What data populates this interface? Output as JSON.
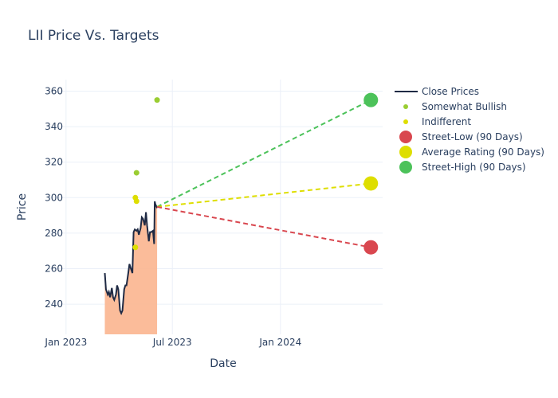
{
  "chart_data": {
    "type": "line",
    "title": "LII Price Vs. Targets",
    "xlabel": "Date",
    "ylabel": "Price",
    "xlim": [
      "2022-12-01",
      "2024-06-23"
    ],
    "ylim": [
      223,
      366.5
    ],
    "grid": true,
    "legend_position": "right",
    "x_ticks": [
      {
        "date": "2023-01-01",
        "label": "Jan 2023"
      },
      {
        "date": "2023-07-01",
        "label": "Jul 2023"
      },
      {
        "date": "2024-01-01",
        "label": "Jan 2024"
      }
    ],
    "y_ticks": [
      240,
      260,
      280,
      300,
      320,
      340,
      360
    ],
    "colors": {
      "close": "#1f2a44",
      "fill": "#fbb58f",
      "somewhat_bullish": "#9acd32",
      "indifferent": "#dede00",
      "street_low": "#d9474f",
      "average": "#dede00",
      "street_high": "#4cc25a"
    },
    "legend": [
      {
        "key": "close",
        "label": "Close Prices",
        "kind": "line"
      },
      {
        "key": "somewhat_bullish",
        "label": "Somewhat Bullish",
        "kind": "small"
      },
      {
        "key": "indifferent",
        "label": "Indifferent",
        "kind": "small"
      },
      {
        "key": "street_low",
        "label": "Street-Low (90 Days)",
        "kind": "big"
      },
      {
        "key": "average",
        "label": "Average Rating (90 Days)",
        "kind": "big"
      },
      {
        "key": "street_high",
        "label": "Street-High (90 Days)",
        "kind": "big"
      }
    ],
    "close_prices": {
      "dates": [
        "2023-03-08",
        "2023-03-10",
        "2023-03-13",
        "2023-03-15",
        "2023-03-17",
        "2023-03-20",
        "2023-03-22",
        "2023-03-24",
        "2023-03-27",
        "2023-03-29",
        "2023-03-31",
        "2023-04-03",
        "2023-04-05",
        "2023-04-07",
        "2023-04-10",
        "2023-04-12",
        "2023-04-14",
        "2023-04-17",
        "2023-04-19",
        "2023-04-21",
        "2023-04-24",
        "2023-04-26",
        "2023-04-28",
        "2023-05-01",
        "2023-05-03",
        "2023-05-05",
        "2023-05-08",
        "2023-05-10",
        "2023-05-12",
        "2023-05-15",
        "2023-05-17",
        "2023-05-19",
        "2023-05-22",
        "2023-05-24",
        "2023-05-26",
        "2023-05-29",
        "2023-05-31",
        "2023-06-01",
        "2023-06-02",
        "2023-06-05"
      ],
      "values": [
        257.5,
        248.4,
        245.4,
        246.9,
        243.9,
        249.1,
        243.9,
        242.4,
        245.4,
        250.6,
        248.4,
        236.4,
        234.9,
        236.4,
        248.4,
        250.6,
        250.6,
        257.5,
        262.6,
        260.4,
        257.5,
        280.6,
        282.1,
        281.3,
        282.1,
        279.1,
        282.8,
        288.9,
        288.1,
        284.4,
        291.8,
        284.4,
        275.4,
        280.6,
        280.6,
        281.3,
        273.9,
        297.9,
        296.4,
        294.1
      ]
    },
    "ratings": [
      {
        "type": "somewhat_bullish",
        "date": "2023-06-05",
        "value": 355
      },
      {
        "type": "somewhat_bullish",
        "date": "2023-05-01",
        "value": 314
      },
      {
        "type": "indifferent",
        "date": "2023-04-29",
        "value": 300
      },
      {
        "type": "indifferent",
        "date": "2023-05-01",
        "value": 298
      },
      {
        "type": "indifferent",
        "date": "2023-04-29",
        "value": 272
      }
    ],
    "targets": {
      "from_date": "2023-06-05",
      "from_value": 294.8,
      "to_date": "2024-06-03",
      "street_low": 272,
      "average": 308,
      "street_high": 355
    }
  }
}
